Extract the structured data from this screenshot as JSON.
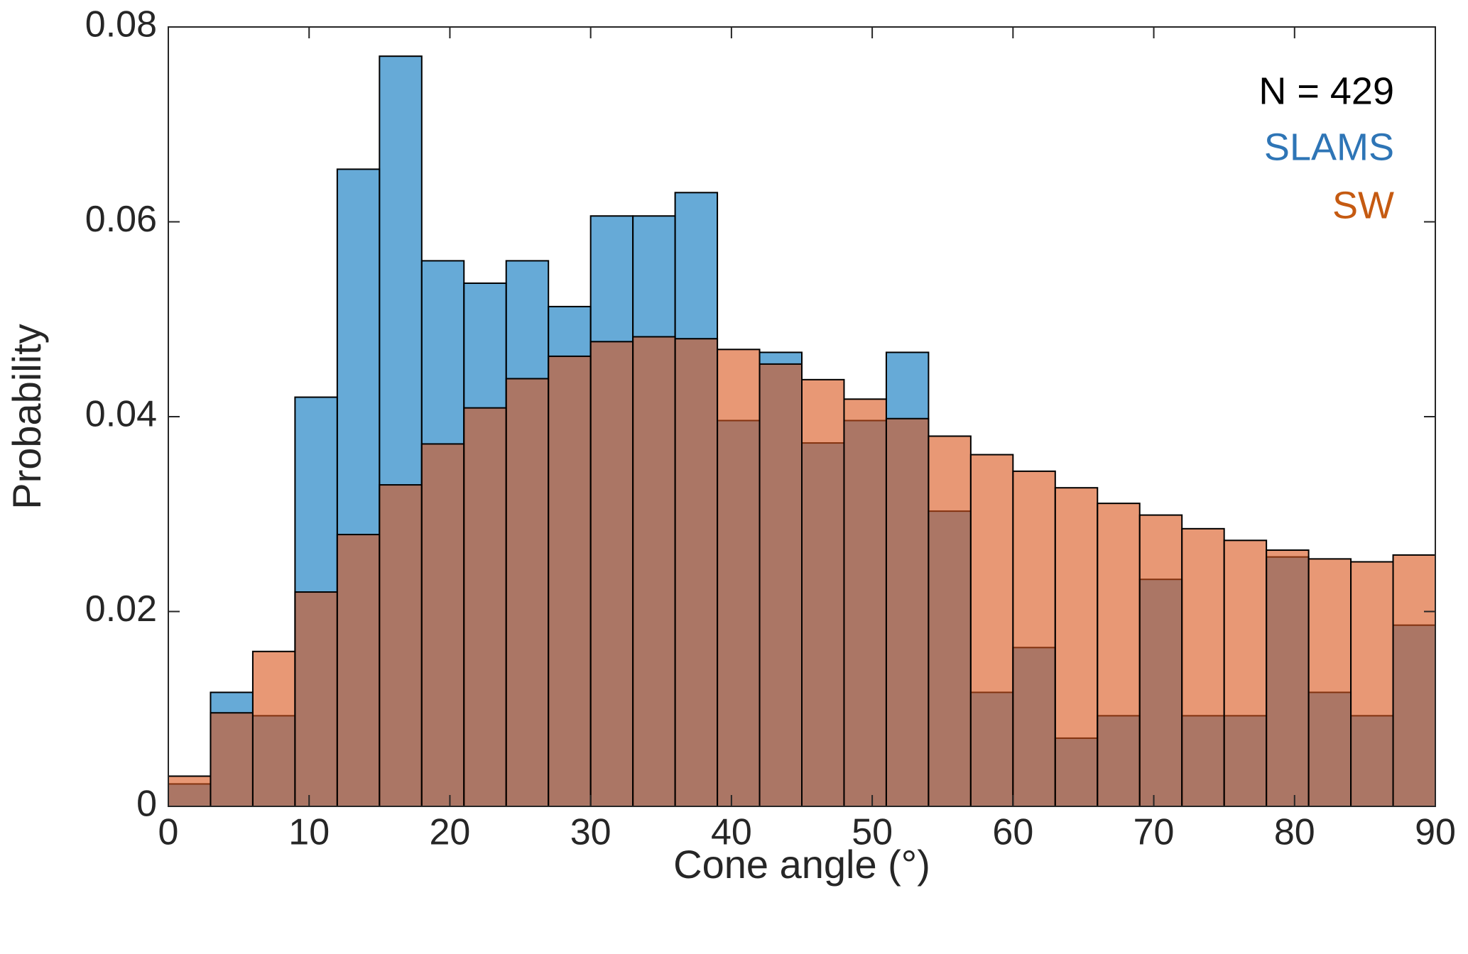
{
  "chart_data": {
    "type": "histogram",
    "xlabel": "Cone angle (°)",
    "ylabel": "Probability",
    "bins": [
      0,
      3,
      6,
      9,
      12,
      15,
      18,
      21,
      24,
      27,
      30,
      33,
      36,
      39,
      42,
      45,
      48,
      51,
      54,
      57,
      60,
      63,
      66,
      69,
      72,
      75,
      78,
      81,
      84,
      87,
      90
    ],
    "series": [
      {
        "name": "SLAMS",
        "color": "#0072BD",
        "text_color": "#2E75B6",
        "values": [
          0.0023,
          0.0117,
          0.0093,
          0.042,
          0.0654,
          0.077,
          0.056,
          0.0537,
          0.056,
          0.0513,
          0.0606,
          0.0606,
          0.063,
          0.0396,
          0.0466,
          0.0373,
          0.0396,
          0.0466,
          0.0303,
          0.0117,
          0.0163,
          0.007,
          0.0093,
          0.0233,
          0.0093,
          0.0093,
          0.0256,
          0.0117,
          0.0093,
          0.0186
        ]
      },
      {
        "name": "SW",
        "color": "#D95319",
        "text_color": "#C55A11",
        "values": [
          0.0031,
          0.0096,
          0.0159,
          0.022,
          0.0279,
          0.033,
          0.0372,
          0.0409,
          0.0439,
          0.0462,
          0.0477,
          0.0482,
          0.048,
          0.0469,
          0.0454,
          0.0438,
          0.0418,
          0.0398,
          0.038,
          0.0361,
          0.0344,
          0.0327,
          0.0311,
          0.0299,
          0.0285,
          0.0273,
          0.0263,
          0.0254,
          0.0251,
          0.0258
        ]
      }
    ],
    "annotation": "N = 429",
    "opacity": 0.6,
    "xlim": [
      0,
      90
    ],
    "xticks": [
      0,
      10,
      20,
      30,
      40,
      50,
      60,
      70,
      80,
      90
    ],
    "ylim": [
      0,
      0.08
    ],
    "yticks": [
      0,
      0.02,
      0.04,
      0.06,
      0.08
    ],
    "grid": false
  }
}
